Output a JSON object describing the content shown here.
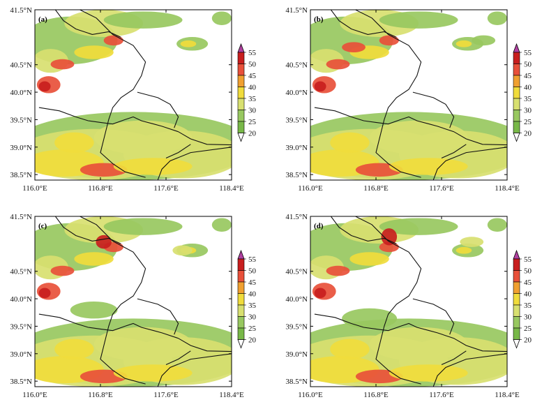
{
  "figure": {
    "y_ticks": [
      "41.5°N",
      "40.5°N",
      "40.0°N",
      "39.5°N",
      "39.0°N",
      "38.5°N"
    ],
    "y_values": [
      41.5,
      40.5,
      40.0,
      39.5,
      39.0,
      38.5
    ],
    "x_ticks": [
      "116.0°E",
      "116.8°E",
      "117.6°E",
      "118.4°E"
    ],
    "lon_range": [
      116.0,
      118.4
    ],
    "lat_range": [
      38.4,
      41.5
    ],
    "colorbar": {
      "labels": [
        "55",
        "50",
        "45",
        "40",
        "35",
        "30",
        "25",
        "20"
      ],
      "colors": [
        "#b040a0",
        "#c81e1e",
        "#e8503a",
        "#f0a030",
        "#f0dc3c",
        "#d8e070",
        "#98c860",
        "#78b848",
        "#ffffff"
      ]
    },
    "panels": [
      {
        "label": "(a)"
      },
      {
        "label": "(b)"
      },
      {
        "label": "(c)"
      },
      {
        "label": "(d)"
      }
    ]
  }
}
